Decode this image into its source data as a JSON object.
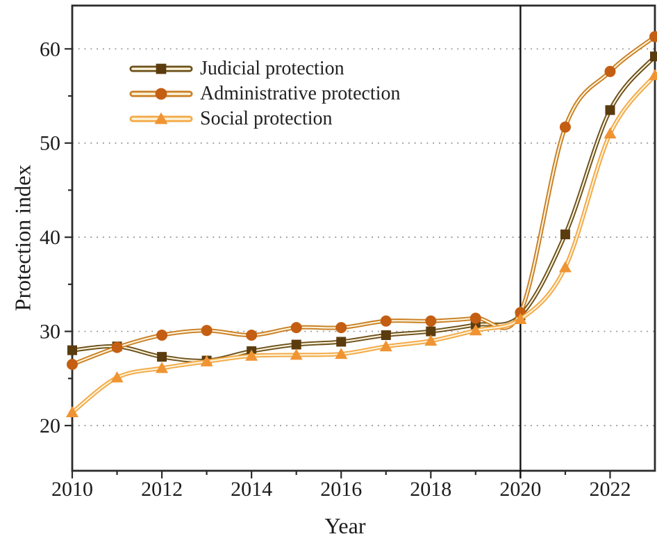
{
  "figure": {
    "kind": "scientific-line-chart",
    "background": "#ffffff"
  },
  "chart_data": {
    "type": "line",
    "title": "",
    "xlabel": "Year",
    "ylabel": "Protection index",
    "x": [
      2010,
      2011,
      2012,
      2013,
      2014,
      2015,
      2016,
      2017,
      2018,
      2019,
      2020,
      2021,
      2022,
      2023
    ],
    "xlim": [
      2010,
      2023
    ],
    "ylim": [
      15.2,
      64.6
    ],
    "x_major_ticks": [
      2010,
      2012,
      2014,
      2016,
      2018,
      2020,
      2022
    ],
    "x_minor_ticks": [
      2011,
      2013,
      2015,
      2017,
      2019,
      2021
    ],
    "y_major_ticks": [
      20,
      30,
      40,
      50,
      60
    ],
    "y_minor_ticks": [
      25,
      35,
      45,
      55
    ],
    "grid": "horizontal-dotted",
    "legend_position": "top-left-inside",
    "reference_line_x": 2020,
    "series": [
      {
        "name": "Judicial protection",
        "marker": "square",
        "marker_color": "#5b3c0e",
        "line_color": "#6a4f1a",
        "values": [
          28.0,
          28.4,
          27.3,
          26.9,
          27.9,
          28.6,
          28.9,
          29.6,
          30.0,
          30.7,
          31.7,
          40.3,
          53.5,
          59.2
        ]
      },
      {
        "name": "Administrative protection",
        "marker": "circle",
        "marker_color": "#c45e12",
        "line_color": "#c97e21",
        "values": [
          26.5,
          28.3,
          29.6,
          30.1,
          29.6,
          30.4,
          30.4,
          31.1,
          31.1,
          31.4,
          32.0,
          51.7,
          57.6,
          61.3
        ]
      },
      {
        "name": "Social protection",
        "marker": "triangle",
        "marker_color": "#f09433",
        "line_color": "#f3a843",
        "values": [
          21.4,
          25.1,
          26.1,
          26.8,
          27.4,
          27.5,
          27.6,
          28.4,
          29.0,
          30.1,
          31.3,
          36.8,
          51.0,
          57.2
        ]
      }
    ],
    "colors": {
      "frame": "#2b2b2b",
      "tick": "#2b2b2b",
      "grid": "#8d8d8d",
      "reference_line": "#111111",
      "line_inner": "#fbf2da",
      "text": "#1c1c1c"
    }
  }
}
